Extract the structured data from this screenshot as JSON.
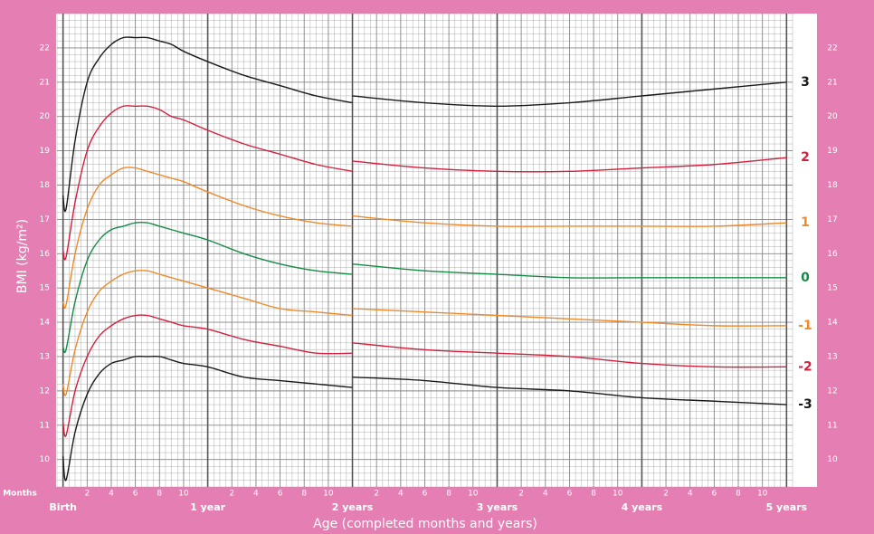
{
  "chart_data": {
    "type": "line",
    "x_label": "Age (completed months and years)",
    "y_label": "BMI (kg/m²)",
    "months_label": "Months",
    "x": [
      0,
      0.25,
      1,
      2,
      3,
      4,
      5,
      6,
      7,
      8,
      9,
      10,
      12,
      15,
      18,
      21,
      24,
      24,
      24,
      30,
      36,
      42,
      48,
      54,
      60
    ],
    "series": [
      {
        "name": "3",
        "color": "#1a1a1a",
        "values": [
          17.7,
          17.3,
          19.3,
          21.0,
          21.7,
          22.1,
          22.3,
          22.3,
          22.3,
          22.2,
          22.1,
          21.9,
          21.6,
          21.2,
          20.9,
          20.6,
          20.4,
          null,
          20.6,
          20.4,
          20.3,
          20.4,
          20.6,
          20.8,
          21.0
        ]
      },
      {
        "name": "2",
        "color": "#d3203f",
        "values": [
          16.1,
          15.9,
          17.5,
          19.0,
          19.7,
          20.1,
          20.3,
          20.3,
          20.3,
          20.2,
          20.0,
          19.9,
          19.6,
          19.2,
          18.9,
          18.6,
          18.4,
          null,
          18.7,
          18.5,
          18.4,
          18.4,
          18.5,
          18.6,
          18.8
        ]
      },
      {
        "name": "1",
        "color": "#ee8a2a",
        "values": [
          14.6,
          14.5,
          16.0,
          17.3,
          18.0,
          18.3,
          18.5,
          18.5,
          18.4,
          18.3,
          18.2,
          18.1,
          17.8,
          17.4,
          17.1,
          16.9,
          16.8,
          null,
          17.1,
          16.9,
          16.8,
          16.8,
          16.8,
          16.8,
          16.9
        ]
      },
      {
        "name": "0",
        "color": "#178a47",
        "values": [
          13.3,
          13.2,
          14.6,
          15.8,
          16.4,
          16.7,
          16.8,
          16.9,
          16.9,
          16.8,
          16.7,
          16.6,
          16.4,
          16.0,
          15.7,
          15.5,
          15.4,
          null,
          15.7,
          15.5,
          15.4,
          15.3,
          15.3,
          15.3,
          15.3
        ]
      },
      {
        "name": "-1",
        "color": "#ee8a2a",
        "values": [
          12.2,
          11.9,
          13.2,
          14.3,
          14.9,
          15.2,
          15.4,
          15.5,
          15.5,
          15.4,
          15.3,
          15.2,
          15.0,
          14.7,
          14.4,
          14.3,
          14.2,
          null,
          14.4,
          14.3,
          14.2,
          14.1,
          14.0,
          13.9,
          13.9
        ]
      },
      {
        "name": "-2",
        "color": "#d3203f",
        "values": [
          11.1,
          10.7,
          12.0,
          13.0,
          13.6,
          13.9,
          14.1,
          14.2,
          14.2,
          14.1,
          14.0,
          13.9,
          13.8,
          13.5,
          13.3,
          13.1,
          13.1,
          null,
          13.4,
          13.2,
          13.1,
          13.0,
          12.8,
          12.7,
          12.7
        ]
      },
      {
        "name": "-3",
        "color": "#1a1a1a",
        "values": [
          10.1,
          9.4,
          10.8,
          11.9,
          12.5,
          12.8,
          12.9,
          13.0,
          13.0,
          13.0,
          12.9,
          12.8,
          12.7,
          12.4,
          12.3,
          12.2,
          12.1,
          null,
          12.4,
          12.3,
          12.1,
          12.0,
          11.8,
          11.7,
          11.6
        ]
      }
    ],
    "xlim": [
      -0.5,
      60.5
    ],
    "ylim": [
      9.2,
      23
    ],
    "yticks": [
      10,
      11,
      12,
      13,
      14,
      15,
      16,
      17,
      18,
      19,
      20,
      21,
      22
    ],
    "xticks": [
      {
        "value": 2,
        "label": "2"
      },
      {
        "value": 4,
        "label": "4"
      },
      {
        "value": 6,
        "label": "6"
      },
      {
        "value": 8,
        "label": "8"
      },
      {
        "value": 10,
        "label": "10"
      },
      {
        "value": 14,
        "label": "2"
      },
      {
        "value": 16,
        "label": "4"
      },
      {
        "value": 18,
        "label": "6"
      },
      {
        "value": 20,
        "label": "8"
      },
      {
        "value": 22,
        "label": "10"
      },
      {
        "value": 26,
        "label": "2"
      },
      {
        "value": 28,
        "label": "4"
      },
      {
        "value": 30,
        "label": "6"
      },
      {
        "value": 32,
        "label": "8"
      },
      {
        "value": 34,
        "label": "10"
      },
      {
        "value": 38,
        "label": "2"
      },
      {
        "value": 40,
        "label": "4"
      },
      {
        "value": 42,
        "label": "6"
      },
      {
        "value": 44,
        "label": "8"
      },
      {
        "value": 46,
        "label": "10"
      },
      {
        "value": 50,
        "label": "2"
      },
      {
        "value": 52,
        "label": "4"
      },
      {
        "value": 54,
        "label": "6"
      },
      {
        "value": 56,
        "label": "8"
      },
      {
        "value": 58,
        "label": "10"
      }
    ],
    "year_ticks": [
      {
        "value": 0,
        "label": "Birth"
      },
      {
        "value": 12,
        "label": "1 year"
      },
      {
        "value": 24,
        "label": "2 years"
      },
      {
        "value": 36,
        "label": "3 years"
      },
      {
        "value": 48,
        "label": "4 years"
      },
      {
        "value": 60,
        "label": "5 years"
      }
    ],
    "grid": true
  }
}
